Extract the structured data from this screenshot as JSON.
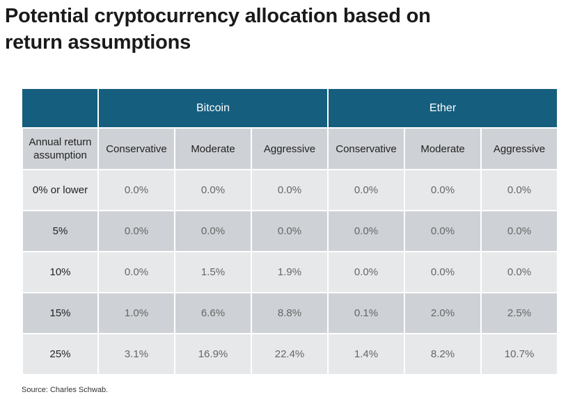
{
  "title": "Potential cryptocurrency allocation based on return assumptions",
  "table": {
    "groups": [
      "Bitcoin",
      "Ether"
    ],
    "row_header_label": "Annual return assumption",
    "columns": [
      "Conservative",
      "Moderate",
      "Aggressive",
      "Conservative",
      "Moderate",
      "Aggressive"
    ],
    "rows": [
      {
        "label": "0% or lower",
        "values": [
          "0.0%",
          "0.0%",
          "0.0%",
          "0.0%",
          "0.0%",
          "0.0%"
        ]
      },
      {
        "label": "5%",
        "values": [
          "0.0%",
          "0.0%",
          "0.0%",
          "0.0%",
          "0.0%",
          "0.0%"
        ]
      },
      {
        "label": "10%",
        "values": [
          "0.0%",
          "1.5%",
          "1.9%",
          "0.0%",
          "0.0%",
          "0.0%"
        ]
      },
      {
        "label": "15%",
        "values": [
          "1.0%",
          "6.6%",
          "8.8%",
          "0.1%",
          "2.0%",
          "2.5%"
        ]
      },
      {
        "label": "25%",
        "values": [
          "3.1%",
          "16.9%",
          "22.4%",
          "1.4%",
          "8.2%",
          "10.7%"
        ]
      }
    ]
  },
  "source": "Source: Charles Schwab.",
  "colors": {
    "header": "#165e7e",
    "row_dark": "#ced1d5",
    "row_light": "#e6e8ea"
  }
}
